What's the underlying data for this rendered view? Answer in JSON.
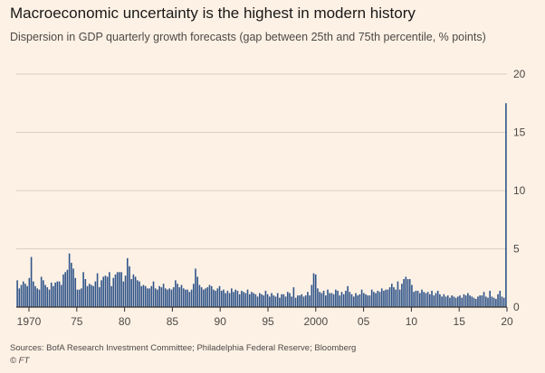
{
  "title": "Macroeconomic uncertainty is the highest in modern history",
  "subtitle": "Dispersion in GDP quarterly growth forecasts (gap between 25th and 75th percentile, % points)",
  "source": "Sources: BofA Research Investment Committee; Philadelphia Federal Reserve; Bloomberg",
  "credit": "© FT",
  "colors": {
    "background": "#fdf1e5",
    "bar": "#2f5489",
    "grid": "#d8cfc7",
    "axis": "#33302e"
  },
  "chart_data": {
    "type": "bar",
    "title": "Macroeconomic uncertainty is the highest in modern history",
    "subtitle": "Dispersion in GDP quarterly growth forecasts (gap between 25th and 75th percentile, % points)",
    "xlabel": "",
    "ylabel": "",
    "x_start": "1968 Q4",
    "x_end": "2020 Q2",
    "x_ticks": [
      "1970",
      "75",
      "80",
      "85",
      "90",
      "95",
      "2000",
      "05",
      "10",
      "15",
      "20"
    ],
    "y_ticks": [
      0,
      5,
      10,
      15,
      20
    ],
    "ylim": [
      0,
      20
    ],
    "y_axis_side": "right",
    "grid": true,
    "legend": "none",
    "values": [
      2.3,
      1.6,
      1.9,
      2.2,
      2.0,
      1.8,
      2.5,
      4.3,
      2.2,
      1.8,
      1.6,
      1.5,
      2.6,
      2.3,
      1.9,
      1.7,
      1.5,
      2.1,
      1.8,
      2.1,
      2.2,
      2.2,
      1.9,
      2.8,
      3.0,
      3.2,
      4.6,
      3.8,
      3.3,
      2.5,
      1.5,
      1.5,
      1.6,
      3.0,
      2.4,
      1.8,
      2.0,
      1.9,
      1.8,
      2.2,
      2.9,
      1.7,
      2.3,
      2.6,
      2.7,
      2.6,
      3.0,
      1.8,
      2.5,
      2.8,
      3.0,
      3.0,
      3.0,
      2.2,
      2.7,
      4.2,
      3.5,
      2.4,
      2.8,
      2.6,
      2.3,
      2.2,
      1.8,
      1.9,
      1.8,
      1.6,
      1.6,
      1.8,
      2.2,
      1.6,
      1.5,
      1.8,
      1.7,
      2.0,
      1.6,
      1.5,
      1.6,
      1.5,
      1.7,
      2.3,
      2.0,
      1.7,
      1.9,
      1.6,
      1.5,
      1.5,
      1.3,
      1.5,
      2.0,
      3.3,
      2.6,
      1.9,
      1.7,
      1.5,
      1.6,
      1.7,
      1.9,
      1.8,
      1.5,
      1.4,
      1.6,
      1.8,
      1.4,
      1.5,
      1.2,
      1.4,
      1.2,
      1.6,
      1.3,
      1.5,
      1.4,
      1.1,
      1.4,
      1.3,
      1.2,
      1.5,
      1.1,
      1.3,
      1.2,
      1.1,
      0.9,
      1.2,
      1.1,
      1.0,
      1.4,
      1.1,
      0.9,
      1.2,
      1.0,
      0.9,
      1.2,
      0.8,
      1.1,
      1.1,
      0.9,
      1.3,
      1.2,
      0.9,
      1.7,
      0.8,
      1.0,
      1.0,
      1.1,
      0.9,
      1.0,
      1.3,
      1.0,
      1.9,
      2.9,
      2.8,
      1.6,
      1.3,
      1.2,
      1.4,
      1.0,
      1.5,
      1.2,
      1.2,
      1.1,
      1.5,
      1.4,
      1.0,
      1.3,
      1.1,
      1.4,
      1.8,
      1.3,
      1.1,
      0.9,
      1.2,
      1.0,
      1.1,
      1.5,
      1.2,
      1.1,
      1.0,
      1.0,
      1.5,
      1.3,
      1.2,
      1.4,
      1.3,
      1.6,
      1.4,
      1.5,
      1.5,
      1.7,
      2.0,
      1.7,
      1.5,
      2.2,
      1.5,
      2.0,
      2.4,
      2.6,
      2.4,
      2.4,
      1.9,
      1.3,
      1.4,
      1.4,
      1.2,
      1.5,
      1.3,
      1.2,
      1.3,
      1.1,
      1.4,
      1.0,
      1.2,
      1.4,
      1.1,
      0.9,
      1.1,
      0.9,
      1.0,
      0.8,
      1.0,
      0.9,
      0.8,
      0.9,
      1.0,
      0.8,
      1.1,
      1.0,
      1.2,
      1.0,
      0.9,
      0.8,
      0.7,
      0.9,
      1.0,
      1.0,
      1.3,
      0.9,
      0.8,
      1.4,
      0.9,
      0.8,
      0.7,
      1.1,
      1.4,
      0.9,
      0.8,
      17.5
    ]
  }
}
